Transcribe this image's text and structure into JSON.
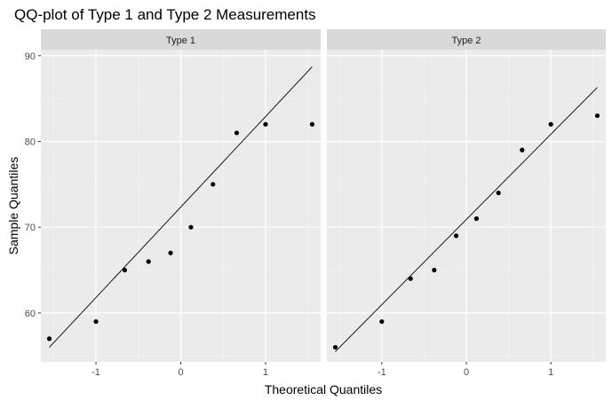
{
  "chart_data": {
    "type": "scatter",
    "title": "QQ-plot of Type 1 and Type 2 Measurements",
    "xlabel": "Theoretical Quantiles",
    "ylabel": "Sample Quantiles",
    "xlim": [
      -1.65,
      1.65
    ],
    "ylim": [
      54.3,
      90.7
    ],
    "x_ticks": [
      -1,
      0,
      1
    ],
    "x_tick_labels": [
      "-1",
      "0",
      "1"
    ],
    "y_ticks": [
      60,
      70,
      80,
      90
    ],
    "y_tick_labels": [
      "60",
      "70",
      "80",
      "90"
    ],
    "grid": true,
    "legend": "none",
    "panels": [
      {
        "strip_label": "Type 1",
        "points": [
          {
            "x": -1.55,
            "y": 57
          },
          {
            "x": -1.0,
            "y": 59
          },
          {
            "x": -0.66,
            "y": 65
          },
          {
            "x": -0.38,
            "y": 66
          },
          {
            "x": -0.12,
            "y": 67
          },
          {
            "x": 0.12,
            "y": 70
          },
          {
            "x": 0.38,
            "y": 75
          },
          {
            "x": 0.66,
            "y": 81
          },
          {
            "x": 1.0,
            "y": 82
          },
          {
            "x": 1.55,
            "y": 82
          }
        ],
        "line": [
          {
            "x": -1.55,
            "y": 56
          },
          {
            "x": 1.55,
            "y": 88.7
          }
        ]
      },
      {
        "strip_label": "Type 2",
        "points": [
          {
            "x": -1.55,
            "y": 56
          },
          {
            "x": -1.0,
            "y": 59
          },
          {
            "x": -0.66,
            "y": 64
          },
          {
            "x": -0.38,
            "y": 65
          },
          {
            "x": -0.12,
            "y": 69
          },
          {
            "x": 0.12,
            "y": 71
          },
          {
            "x": 0.38,
            "y": 74
          },
          {
            "x": 0.66,
            "y": 79
          },
          {
            "x": 1.0,
            "y": 82
          },
          {
            "x": 1.55,
            "y": 83
          }
        ],
        "line": [
          {
            "x": -1.55,
            "y": 55.5
          },
          {
            "x": 1.55,
            "y": 86.3
          }
        ]
      }
    ]
  }
}
